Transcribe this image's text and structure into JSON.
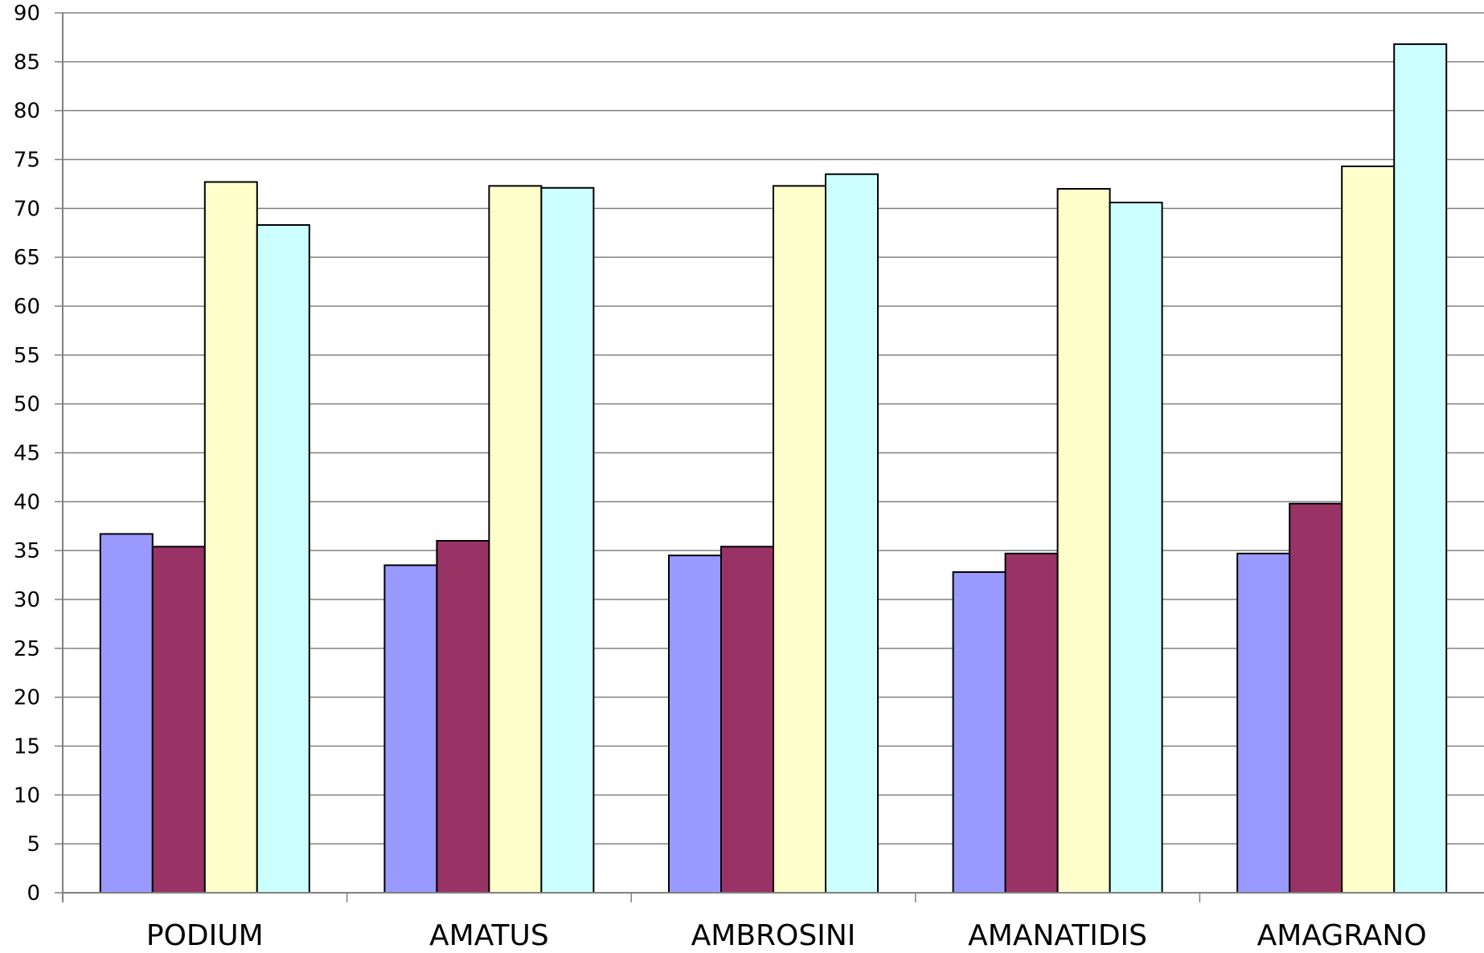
{
  "chart_data": {
    "type": "bar",
    "title": "",
    "xlabel": "",
    "ylabel": "",
    "categories": [
      "PODIUM",
      "AMATUS",
      "AMBROSINI",
      "AMANATIDIS",
      "AMAGRANO"
    ],
    "series": [
      {
        "color": "#9999FF",
        "values": [
          36.7,
          33.5,
          34.5,
          32.8,
          34.7
        ]
      },
      {
        "color": "#993366",
        "values": [
          35.4,
          36.0,
          35.4,
          34.7,
          39.8
        ]
      },
      {
        "color": "#FFFFCC",
        "values": [
          72.7,
          72.3,
          72.3,
          72.0,
          74.3
        ]
      },
      {
        "color": "#CCFFFF",
        "values": [
          68.3,
          72.1,
          73.5,
          70.6,
          86.8
        ]
      }
    ],
    "ylim": [
      0,
      90
    ],
    "ytick_step": 5,
    "yticks": [
      "0",
      "5",
      "10",
      "15",
      "20",
      "25",
      "30",
      "35",
      "40",
      "45",
      "50",
      "55",
      "60",
      "65",
      "70",
      "75",
      "80",
      "85",
      "90"
    ],
    "grid": true,
    "legend": "none"
  }
}
